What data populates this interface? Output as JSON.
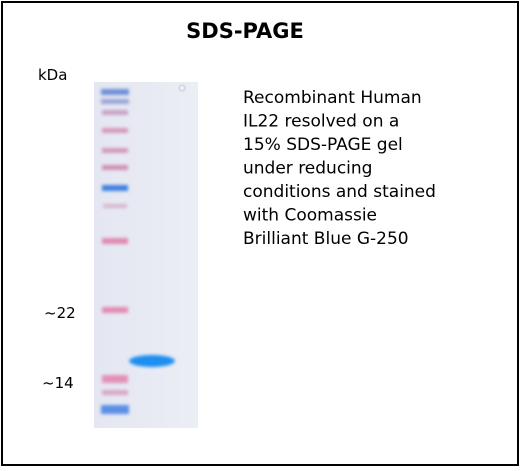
{
  "header": {
    "title": "SDS-PAGE"
  },
  "gel": {
    "unit_label": "kDa",
    "markers": [
      "~22",
      "~14"
    ]
  },
  "description": {
    "lines": [
      "Recombinant Human",
      "IL22 resolved  on a",
      "15% SDS-PAGE gel",
      "under reducing",
      "conditions and stained",
      "with Coomassie",
      "Brilliant Blue G-250"
    ]
  }
}
